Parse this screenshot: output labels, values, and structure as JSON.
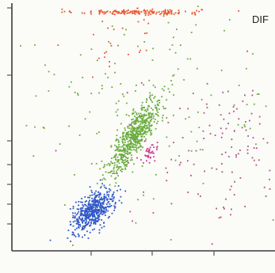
{
  "chart_data": {
    "type": "scatter",
    "title": "",
    "corner_label": "DIF",
    "xlabel": "",
    "ylabel": "",
    "xlim": [
      0,
      100
    ],
    "ylim": [
      0,
      100
    ],
    "grid": false,
    "legend": "none",
    "series": [
      {
        "color": "#e8572e",
        "cluster": {
          "cx": 48,
          "cy": 97,
          "sx": 12,
          "sy": 0.6,
          "r": 0,
          "n": 160
        }
      },
      {
        "color": "#e8572e",
        "cluster": {
          "cx": 40,
          "cy": 86,
          "sx": 8,
          "sy": 6,
          "r": 0,
          "n": 25
        }
      },
      {
        "color": "#6aad3f",
        "cluster": {
          "cx": 47,
          "cy": 47,
          "sx": 5,
          "sy": 8,
          "r": 0.85,
          "n": 650
        }
      },
      {
        "color": "#6aad3f",
        "cluster": {
          "cx": 50,
          "cy": 58,
          "sx": 28,
          "sy": 20,
          "r": 0,
          "n": 170
        }
      },
      {
        "color": "#2f57c8",
        "cluster": {
          "cx": 31,
          "cy": 16,
          "sx": 4,
          "sy": 4,
          "r": 0.55,
          "n": 520
        }
      },
      {
        "color": "#d6379a",
        "cluster": {
          "cx": 52,
          "cy": 39,
          "sx": 2,
          "sy": 2.5,
          "r": 0.5,
          "n": 35
        }
      },
      {
        "color": "#a9538c",
        "cluster": {
          "cx": 82,
          "cy": 42,
          "sx": 14,
          "sy": 14,
          "r": 0,
          "n": 110
        }
      },
      {
        "color": "#d6379a",
        "cluster": {
          "cx": 60,
          "cy": 35,
          "sx": 25,
          "sy": 25,
          "r": 0,
          "n": 20
        }
      }
    ]
  }
}
